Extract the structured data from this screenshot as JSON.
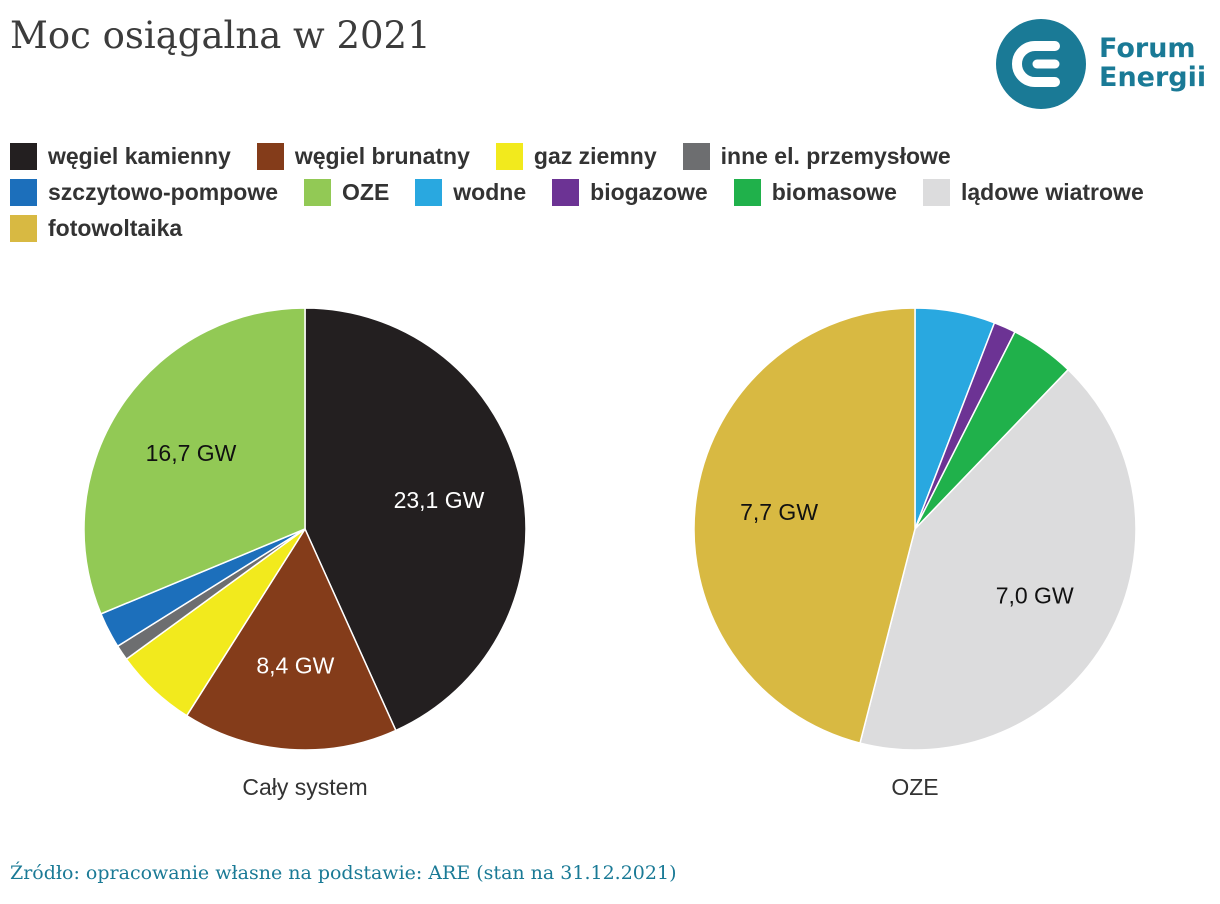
{
  "title": "Moc osiągalna w 2021",
  "logo": {
    "line1": "Forum",
    "line2": "Energii",
    "color": "#1a7a96",
    "accent": "#e4303d",
    "icon": "forum-energii-logo-icon"
  },
  "legend": [
    {
      "label": "węgiel kamienny",
      "color": "#231f20"
    },
    {
      "label": "węgiel brunatny",
      "color": "#843c1a"
    },
    {
      "label": "gaz ziemny",
      "color": "#f2ea1d"
    },
    {
      "label": "inne el. przemysłowe",
      "color": "#6d6e70"
    },
    {
      "label": "szczytowo-pompowe",
      "color": "#1c6fbb"
    },
    {
      "label": "OZE",
      "color": "#92c955"
    },
    {
      "label": "wodne",
      "color": "#29a8e0"
    },
    {
      "label": "biogazowe",
      "color": "#6c3394"
    },
    {
      "label": "biomasowe",
      "color": "#20b14b"
    },
    {
      "label": "lądowe wiatrowe",
      "color": "#dcdcdd"
    },
    {
      "label": "fotowoltaika",
      "color": "#d8b942"
    }
  ],
  "chart_data": [
    {
      "type": "pie",
      "title": "Cały system",
      "unit": "GW",
      "slices": [
        {
          "label": "węgiel kamienny",
          "value": 23.1,
          "color": "#231f20",
          "data_label": "23,1 GW",
          "label_color": "#ffffff"
        },
        {
          "label": "węgiel brunatny",
          "value": 8.4,
          "color": "#843c1a",
          "data_label": "8,4 GW",
          "label_color": "#ffffff"
        },
        {
          "label": "gaz ziemny",
          "value": 3.2,
          "color": "#f2ea1d",
          "data_label": ""
        },
        {
          "label": "inne el. przemysłowe",
          "value": 0.6,
          "color": "#6d6e70",
          "data_label": ""
        },
        {
          "label": "szczytowo-pompowe",
          "value": 1.4,
          "color": "#1c6fbb",
          "data_label": ""
        },
        {
          "label": "OZE",
          "value": 16.7,
          "color": "#92c955",
          "data_label": "16,7 GW",
          "label_color": "#111111"
        }
      ]
    },
    {
      "type": "pie",
      "title": "OZE",
      "unit": "GW",
      "slices": [
        {
          "label": "wodne",
          "value": 0.98,
          "color": "#29a8e0",
          "data_label": ""
        },
        {
          "label": "biogazowe",
          "value": 0.27,
          "color": "#6c3394",
          "data_label": ""
        },
        {
          "label": "biomasowe",
          "value": 0.79,
          "color": "#20b14b",
          "data_label": ""
        },
        {
          "label": "lądowe wiatrowe",
          "value": 7.0,
          "color": "#dcdcdd",
          "data_label": "7,0 GW",
          "label_color": "#111111"
        },
        {
          "label": "fotowoltaika",
          "value": 7.7,
          "color": "#d8b942",
          "data_label": "7,7 GW",
          "label_color": "#111111"
        }
      ]
    }
  ],
  "source": "Źródło: opracowanie własne na podstawie: ARE (stan na 31.12.2021)"
}
